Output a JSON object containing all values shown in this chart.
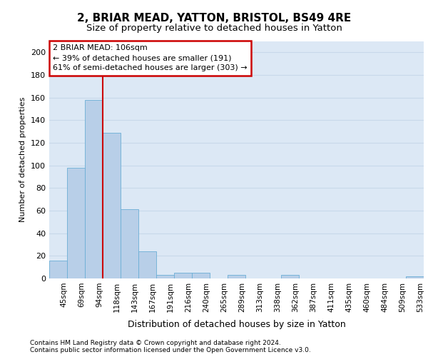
{
  "title1": "2, BRIAR MEAD, YATTON, BRISTOL, BS49 4RE",
  "title2": "Size of property relative to detached houses in Yatton",
  "xlabel": "Distribution of detached houses by size in Yatton",
  "ylabel": "Number of detached properties",
  "categories": [
    "45sqm",
    "69sqm",
    "94sqm",
    "118sqm",
    "143sqm",
    "167sqm",
    "191sqm",
    "216sqm",
    "240sqm",
    "265sqm",
    "289sqm",
    "313sqm",
    "338sqm",
    "362sqm",
    "387sqm",
    "411sqm",
    "435sqm",
    "460sqm",
    "484sqm",
    "509sqm",
    "533sqm"
  ],
  "values": [
    16,
    98,
    158,
    129,
    61,
    24,
    3,
    5,
    5,
    0,
    3,
    0,
    0,
    3,
    0,
    0,
    0,
    0,
    0,
    0,
    2
  ],
  "bar_color": "#b8cfe8",
  "bar_edge_color": "#6baed6",
  "grid_color": "#c8d8ea",
  "background_color": "#dce8f5",
  "annotation_line1": "2 BRIAR MEAD: 106sqm",
  "annotation_line2": "← 39% of detached houses are smaller (191)",
  "annotation_line3": "61% of semi-detached houses are larger (303) →",
  "annotation_box_facecolor": "#ffffff",
  "annotation_box_edgecolor": "#cc0000",
  "red_line_index": 3,
  "ylim": [
    0,
    210
  ],
  "yticks": [
    0,
    20,
    40,
    60,
    80,
    100,
    120,
    140,
    160,
    180,
    200
  ],
  "title1_fontsize": 11,
  "title2_fontsize": 9.5,
  "xlabel_fontsize": 9,
  "ylabel_fontsize": 8,
  "tick_fontsize": 8,
  "xtick_fontsize": 7.5,
  "footer1": "Contains HM Land Registry data © Crown copyright and database right 2024.",
  "footer2": "Contains public sector information licensed under the Open Government Licence v3.0.",
  "footer_fontsize": 6.5
}
